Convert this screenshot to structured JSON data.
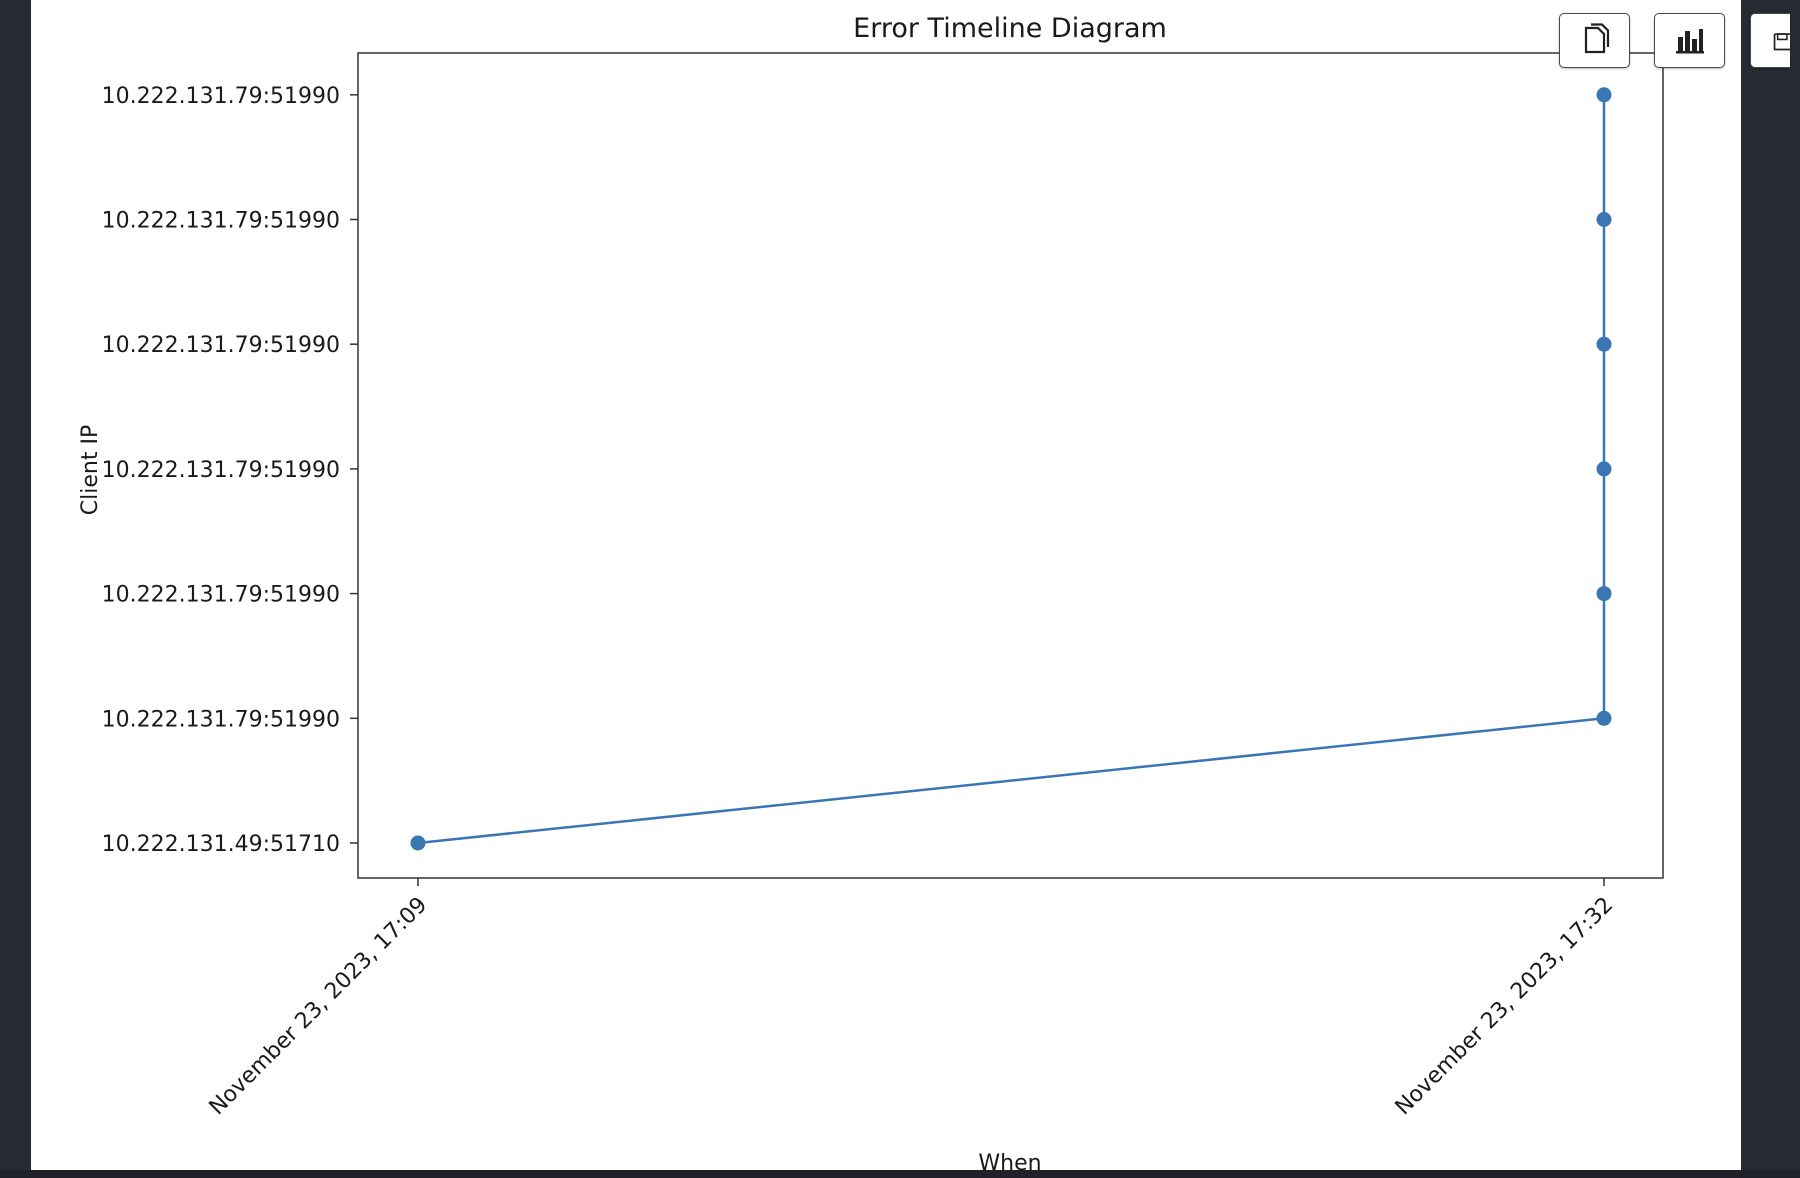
{
  "chart_data": {
    "type": "line",
    "title": "Error Timeline Diagram",
    "xlabel": "When",
    "ylabel": "Client IP",
    "x_ticks": [
      "November 23, 2023, 17:09",
      "November 23, 2023, 17:32"
    ],
    "y_ticks": [
      "10.222.131.49:51710",
      "10.222.131.79:51990",
      "10.222.131.79:51990",
      "10.222.131.79:51990",
      "10.222.131.79:51990",
      "10.222.131.79:51990",
      "10.222.131.79:51990"
    ],
    "series": [
      {
        "x": [
          "November 23, 2023, 17:09",
          "November 23, 2023, 17:32",
          "November 23, 2023, 17:32",
          "November 23, 2023, 17:32",
          "November 23, 2023, 17:32",
          "November 23, 2023, 17:32",
          "November 23, 2023, 17:32"
        ],
        "y": [
          "10.222.131.49:51710",
          "10.222.131.79:51990",
          "10.222.131.79:51990",
          "10.222.131.79:51990",
          "10.222.131.79:51990",
          "10.222.131.79:51990",
          "10.222.131.79:51990"
        ]
      }
    ],
    "markers": true,
    "grid": false,
    "colors": {
      "line": "#3a76b3",
      "axes": "#333333"
    }
  },
  "toolbar": {
    "buttons": [
      {
        "icon": "copy-icon"
      },
      {
        "icon": "bar-chart-icon"
      },
      {
        "icon": "save-icon"
      }
    ]
  }
}
